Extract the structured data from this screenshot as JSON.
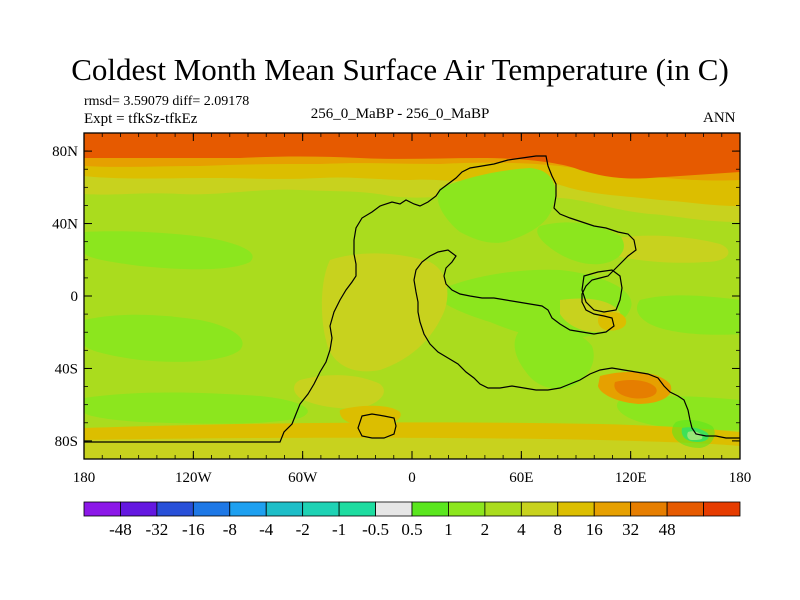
{
  "title": "Coldest Month Mean Surface Air Temperature (in C)",
  "stats_line": "rmsd= 3.59079 diff= 2.09178",
  "expt_line": "Expt = tfkSz-tfkEz",
  "center_label": "256_0_MaBP - 256_0_MaBP",
  "season_label": "ANN",
  "axes": {
    "lon_range": [
      -180,
      180
    ],
    "lat_range": [
      -90,
      90
    ],
    "lon_ticks": [
      {
        "value": -180,
        "label": "180"
      },
      {
        "value": -120,
        "label": "120W"
      },
      {
        "value": -60,
        "label": "60W"
      },
      {
        "value": 0,
        "label": "0"
      },
      {
        "value": 60,
        "label": "60E"
      },
      {
        "value": 120,
        "label": "120E"
      },
      {
        "value": 180,
        "label": "180"
      }
    ],
    "lat_ticks": [
      {
        "value": 80,
        "label": "80N"
      },
      {
        "value": 40,
        "label": "40N"
      },
      {
        "value": 0,
        "label": "0"
      },
      {
        "value": -40,
        "label": "40S"
      },
      {
        "value": -80,
        "label": "80S"
      }
    ]
  },
  "colorbar": {
    "colors": [
      "#8c18e8",
      "#6418e0",
      "#2850d8",
      "#1e78e6",
      "#1ea0f0",
      "#1ebec8",
      "#1ed2b4",
      "#1edca0",
      "#e6e6e6",
      "#5ae61e",
      "#8ce61e",
      "#aadc1e",
      "#c8d21e",
      "#dcbe00",
      "#e6a000",
      "#e67e00",
      "#e65a00",
      "#e63c00"
    ],
    "labels": [
      "-48",
      "-32",
      "-16",
      "-8",
      "-4",
      "-2",
      "-1",
      "-0.5",
      "0.5",
      "1",
      "2",
      "4",
      "8",
      "16",
      "32",
      "48"
    ]
  },
  "fill_colors": {
    "level_1": "#8ce61e",
    "level_2": "#aadc1e",
    "level_3": "#c8d21e",
    "level_4": "#dcbe00",
    "level_5": "#e6a000",
    "level_6": "#e67e00",
    "level_7": "#e65a00",
    "level_8": "#5ae61e",
    "level_9": "#1edca0",
    "level_10": "#e6e6e6"
  }
}
